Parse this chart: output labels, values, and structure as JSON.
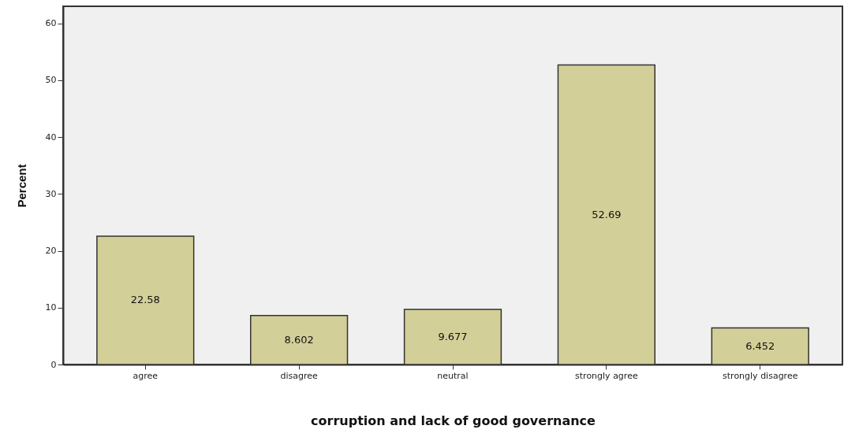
{
  "chart_data": {
    "type": "bar",
    "xlabel": "corruption and lack of good governance",
    "ylabel": "Percent",
    "categories": [
      "agree",
      "disagree",
      "neutral",
      "strongly agree",
      "strongly disagree"
    ],
    "values": [
      22.58,
      8.602,
      9.677,
      52.69,
      6.452
    ],
    "color": "#d3cf98",
    "ylim": [
      0,
      63
    ],
    "yticks": [
      0,
      10,
      20,
      30,
      40,
      50,
      60
    ],
    "grid": false,
    "data_labels": true
  }
}
